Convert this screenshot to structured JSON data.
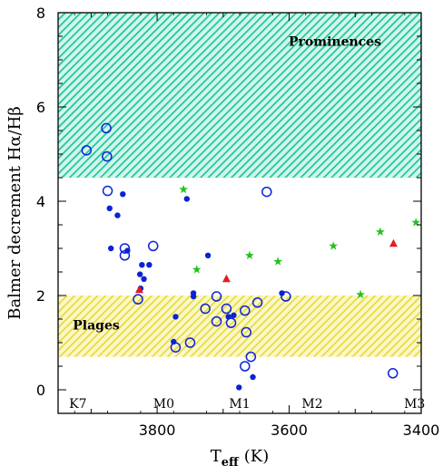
{
  "chart_data": {
    "type": "scatter",
    "title": "",
    "xlabel": "T",
    "xlabel_sub": "eff",
    "xlabel_unit": "(K)",
    "ylabel": "Balmer decrement Hα/Hβ",
    "xlim": [
      3950,
      3400
    ],
    "ylim": [
      -0.5,
      8
    ],
    "x_ticks": [
      3800,
      3600,
      3400
    ],
    "y_ticks": [
      0,
      2,
      4,
      6,
      8
    ],
    "grid": false,
    "legend": "none",
    "regions": [
      {
        "label": "Prominences",
        "y_range": [
          4.5,
          8
        ],
        "color": "#19c79b",
        "pattern": "hatched"
      },
      {
        "label": "Plages",
        "y_range": [
          0.7,
          2.0
        ],
        "color": "#e6dc37",
        "pattern": "hatched"
      }
    ],
    "spectral_types": [
      {
        "label": "K7",
        "teff": 3920
      },
      {
        "label": "M0",
        "teff": 3790
      },
      {
        "label": "M1",
        "teff": 3675
      },
      {
        "label": "M2",
        "teff": 3565
      },
      {
        "label": "M3",
        "teff": 3410
      }
    ],
    "series": [
      {
        "marker": "filled-circle",
        "color": "#0b22d6",
        "points": [
          [
            3852,
            4.15
          ],
          [
            3860,
            3.7
          ],
          [
            3872,
            3.85
          ],
          [
            3870,
            3.0
          ],
          [
            3845,
            2.95
          ],
          [
            3823,
            2.65
          ],
          [
            3812,
            2.65
          ],
          [
            3826,
            2.45
          ],
          [
            3820,
            2.35
          ],
          [
            3825,
            2.15
          ],
          [
            3755,
            4.05
          ],
          [
            3745,
            2.05
          ],
          [
            3745,
            1.98
          ],
          [
            3723,
            2.85
          ],
          [
            3772,
            1.55
          ],
          [
            3775,
            1.02
          ],
          [
            3692,
            1.55
          ],
          [
            3684,
            1.58
          ],
          [
            3611,
            2.05
          ],
          [
            3655,
            0.27
          ],
          [
            3676,
            0.05
          ]
        ]
      },
      {
        "marker": "open-circle",
        "color": "#0b22d6",
        "points": [
          [
            3877,
            5.55
          ],
          [
            3907,
            5.08
          ],
          [
            3876,
            4.95
          ],
          [
            3875,
            4.22
          ],
          [
            3849,
            3.0
          ],
          [
            3849,
            2.85
          ],
          [
            3806,
            3.05
          ],
          [
            3829,
            1.92
          ],
          [
            3634,
            4.2
          ],
          [
            3727,
            1.72
          ],
          [
            3710,
            1.98
          ],
          [
            3695,
            1.72
          ],
          [
            3688,
            1.42
          ],
          [
            3667,
            1.68
          ],
          [
            3648,
            1.85
          ],
          [
            3605,
            1.98
          ],
          [
            3710,
            1.45
          ],
          [
            3665,
            1.22
          ],
          [
            3772,
            0.9
          ],
          [
            3750,
            1.0
          ],
          [
            3658,
            0.7
          ],
          [
            3667,
            0.5
          ],
          [
            3443,
            0.35
          ]
        ]
      },
      {
        "marker": "filled-triangle",
        "color": "#e51c1c",
        "points": [
          [
            3827,
            2.12
          ],
          [
            3695,
            2.35
          ],
          [
            3442,
            3.1
          ]
        ]
      },
      {
        "marker": "star",
        "color": "#22c31e",
        "points": [
          [
            3760,
            4.25
          ],
          [
            3740,
            2.55
          ],
          [
            3660,
            2.85
          ],
          [
            3617,
            2.72
          ],
          [
            3533,
            3.05
          ],
          [
            3492,
            2.02
          ],
          [
            3462,
            3.35
          ],
          [
            3408,
            3.55
          ]
        ]
      }
    ]
  }
}
